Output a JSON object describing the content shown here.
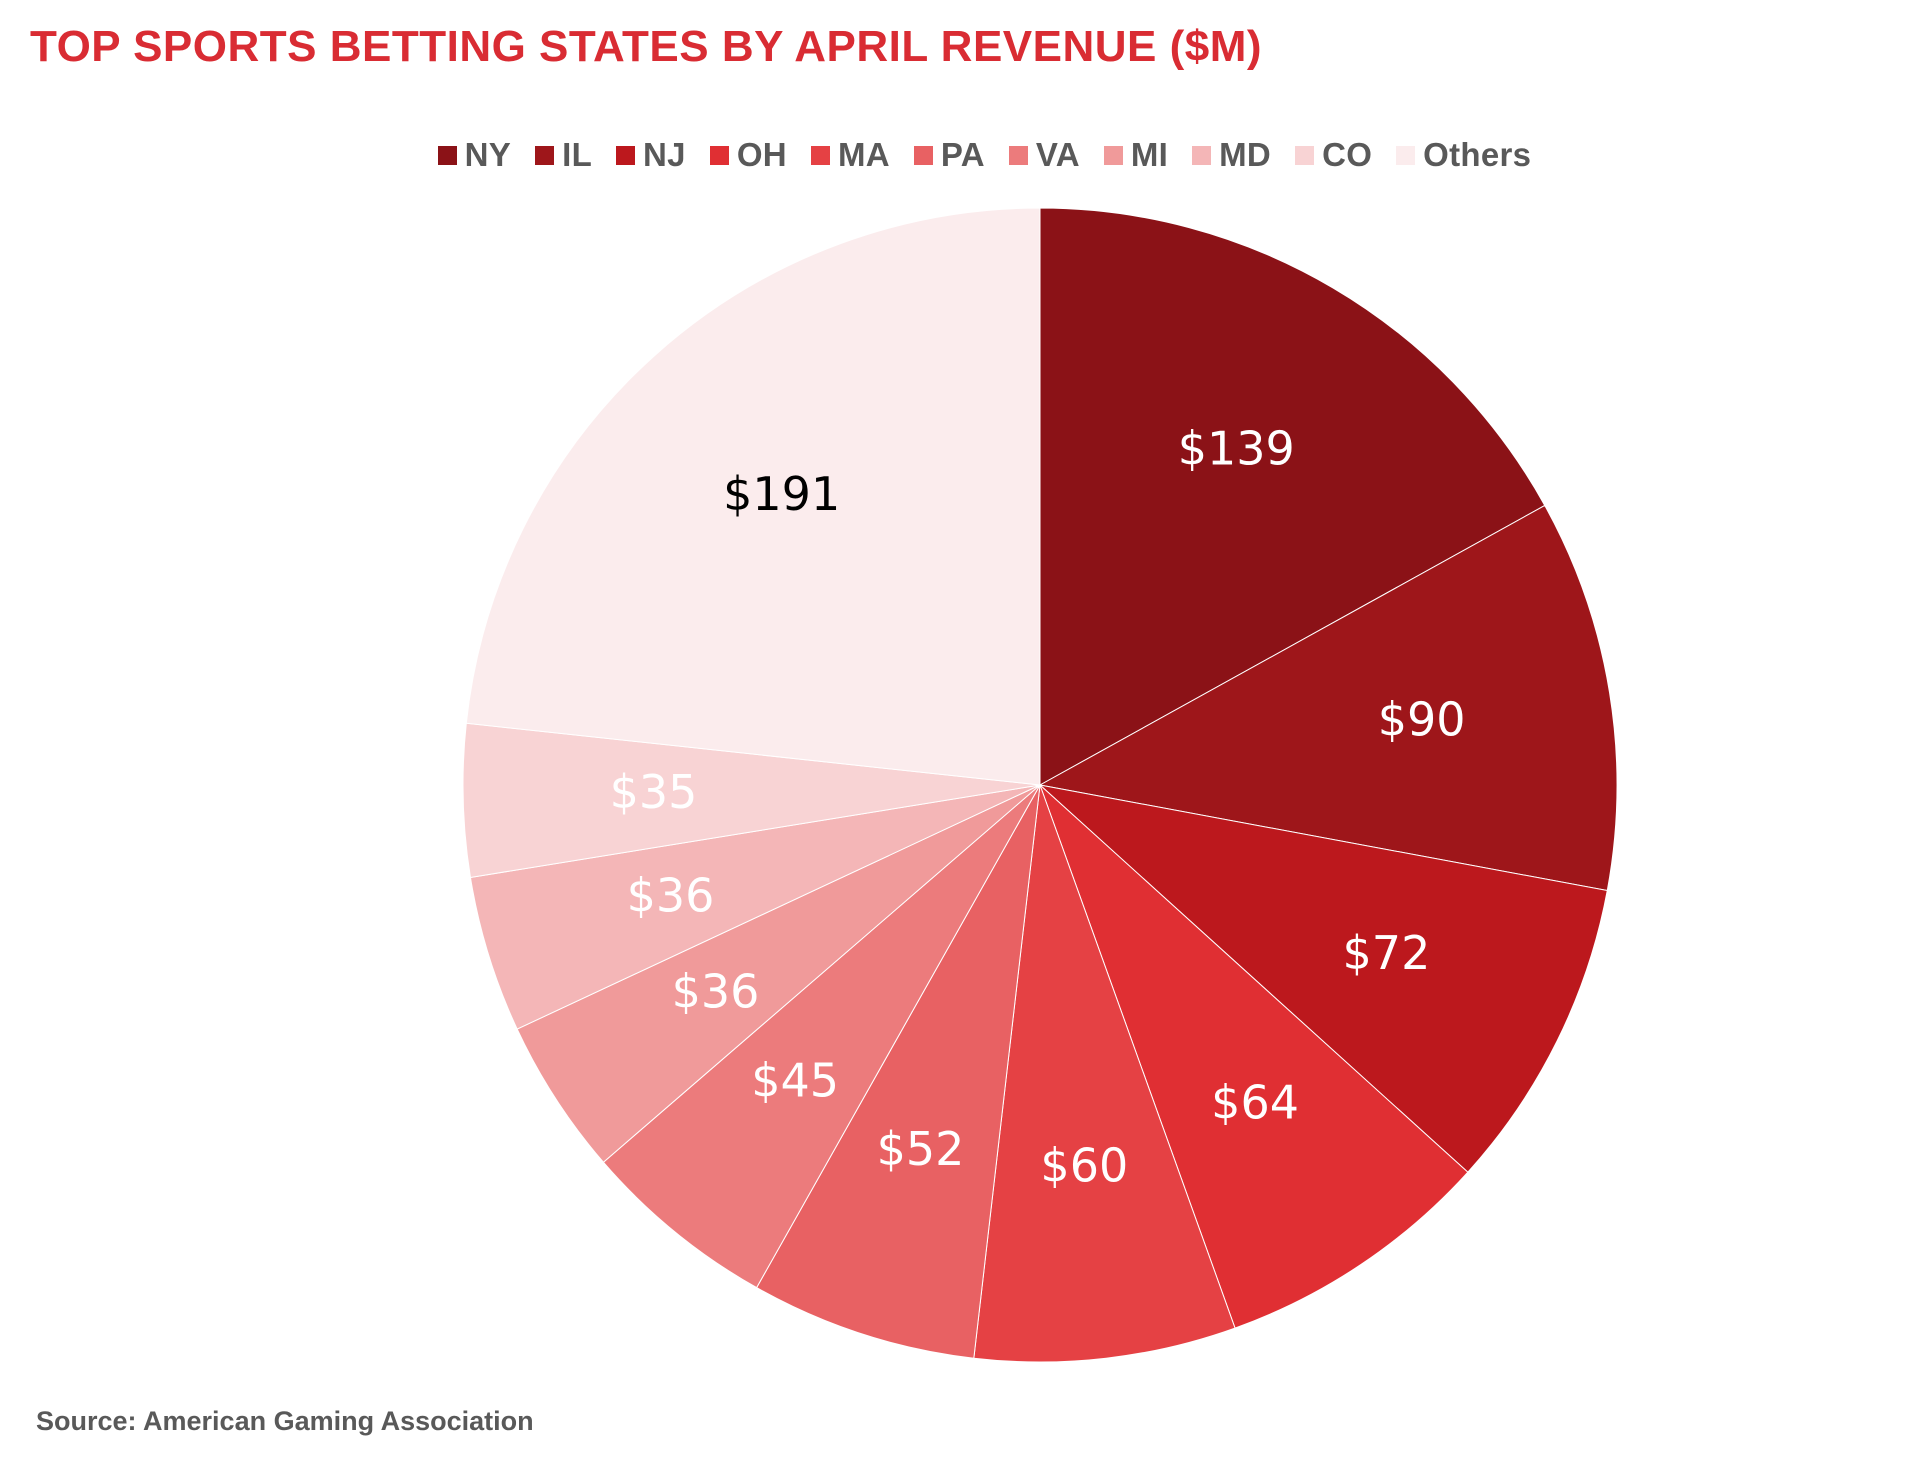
{
  "title": "TOP SPORTS BETTING STATES BY APRIL REVENUE ($M)",
  "source": "Source: American Gaming Association",
  "chart_data": {
    "type": "pie",
    "title": "TOP SPORTS BETTING STATES BY APRIL REVENUE ($M)",
    "unit": "$M",
    "start_angle": "12 o'clock",
    "direction": "clockwise",
    "legend_position": "top-center",
    "slices": [
      {
        "label": "NY",
        "value": 139,
        "data_label": "$139",
        "color": "#8b1217",
        "label_color": "#ffffff"
      },
      {
        "label": "IL",
        "value": 90,
        "data_label": "$90",
        "color": "#9e161a",
        "label_color": "#ffffff"
      },
      {
        "label": "NJ",
        "value": 72,
        "data_label": "$72",
        "color": "#bc181d",
        "label_color": "#ffffff"
      },
      {
        "label": "OH",
        "value": 64,
        "data_label": "$64",
        "color": "#e02f33",
        "label_color": "#ffffff"
      },
      {
        "label": "MA",
        "value": 60,
        "data_label": "$60",
        "color": "#e54144",
        "label_color": "#ffffff"
      },
      {
        "label": "PA",
        "value": 52,
        "data_label": "$52",
        "color": "#e86163",
        "label_color": "#ffffff"
      },
      {
        "label": "VA",
        "value": 45,
        "data_label": "$45",
        "color": "#ec7b7c",
        "label_color": "#ffffff"
      },
      {
        "label": "MI",
        "value": 36,
        "data_label": "$36",
        "color": "#f09a9a",
        "label_color": "#ffffff"
      },
      {
        "label": "MD",
        "value": 36,
        "data_label": "$36",
        "color": "#f4b6b7",
        "label_color": "#ffffff"
      },
      {
        "label": "CO",
        "value": 35,
        "data_label": "$35",
        "color": "#f8d3d4",
        "label_color": "#ffffff"
      },
      {
        "label": "Others",
        "value": 191,
        "data_label": "$191",
        "color": "#fbeced",
        "label_color": "#000000"
      }
    ]
  }
}
